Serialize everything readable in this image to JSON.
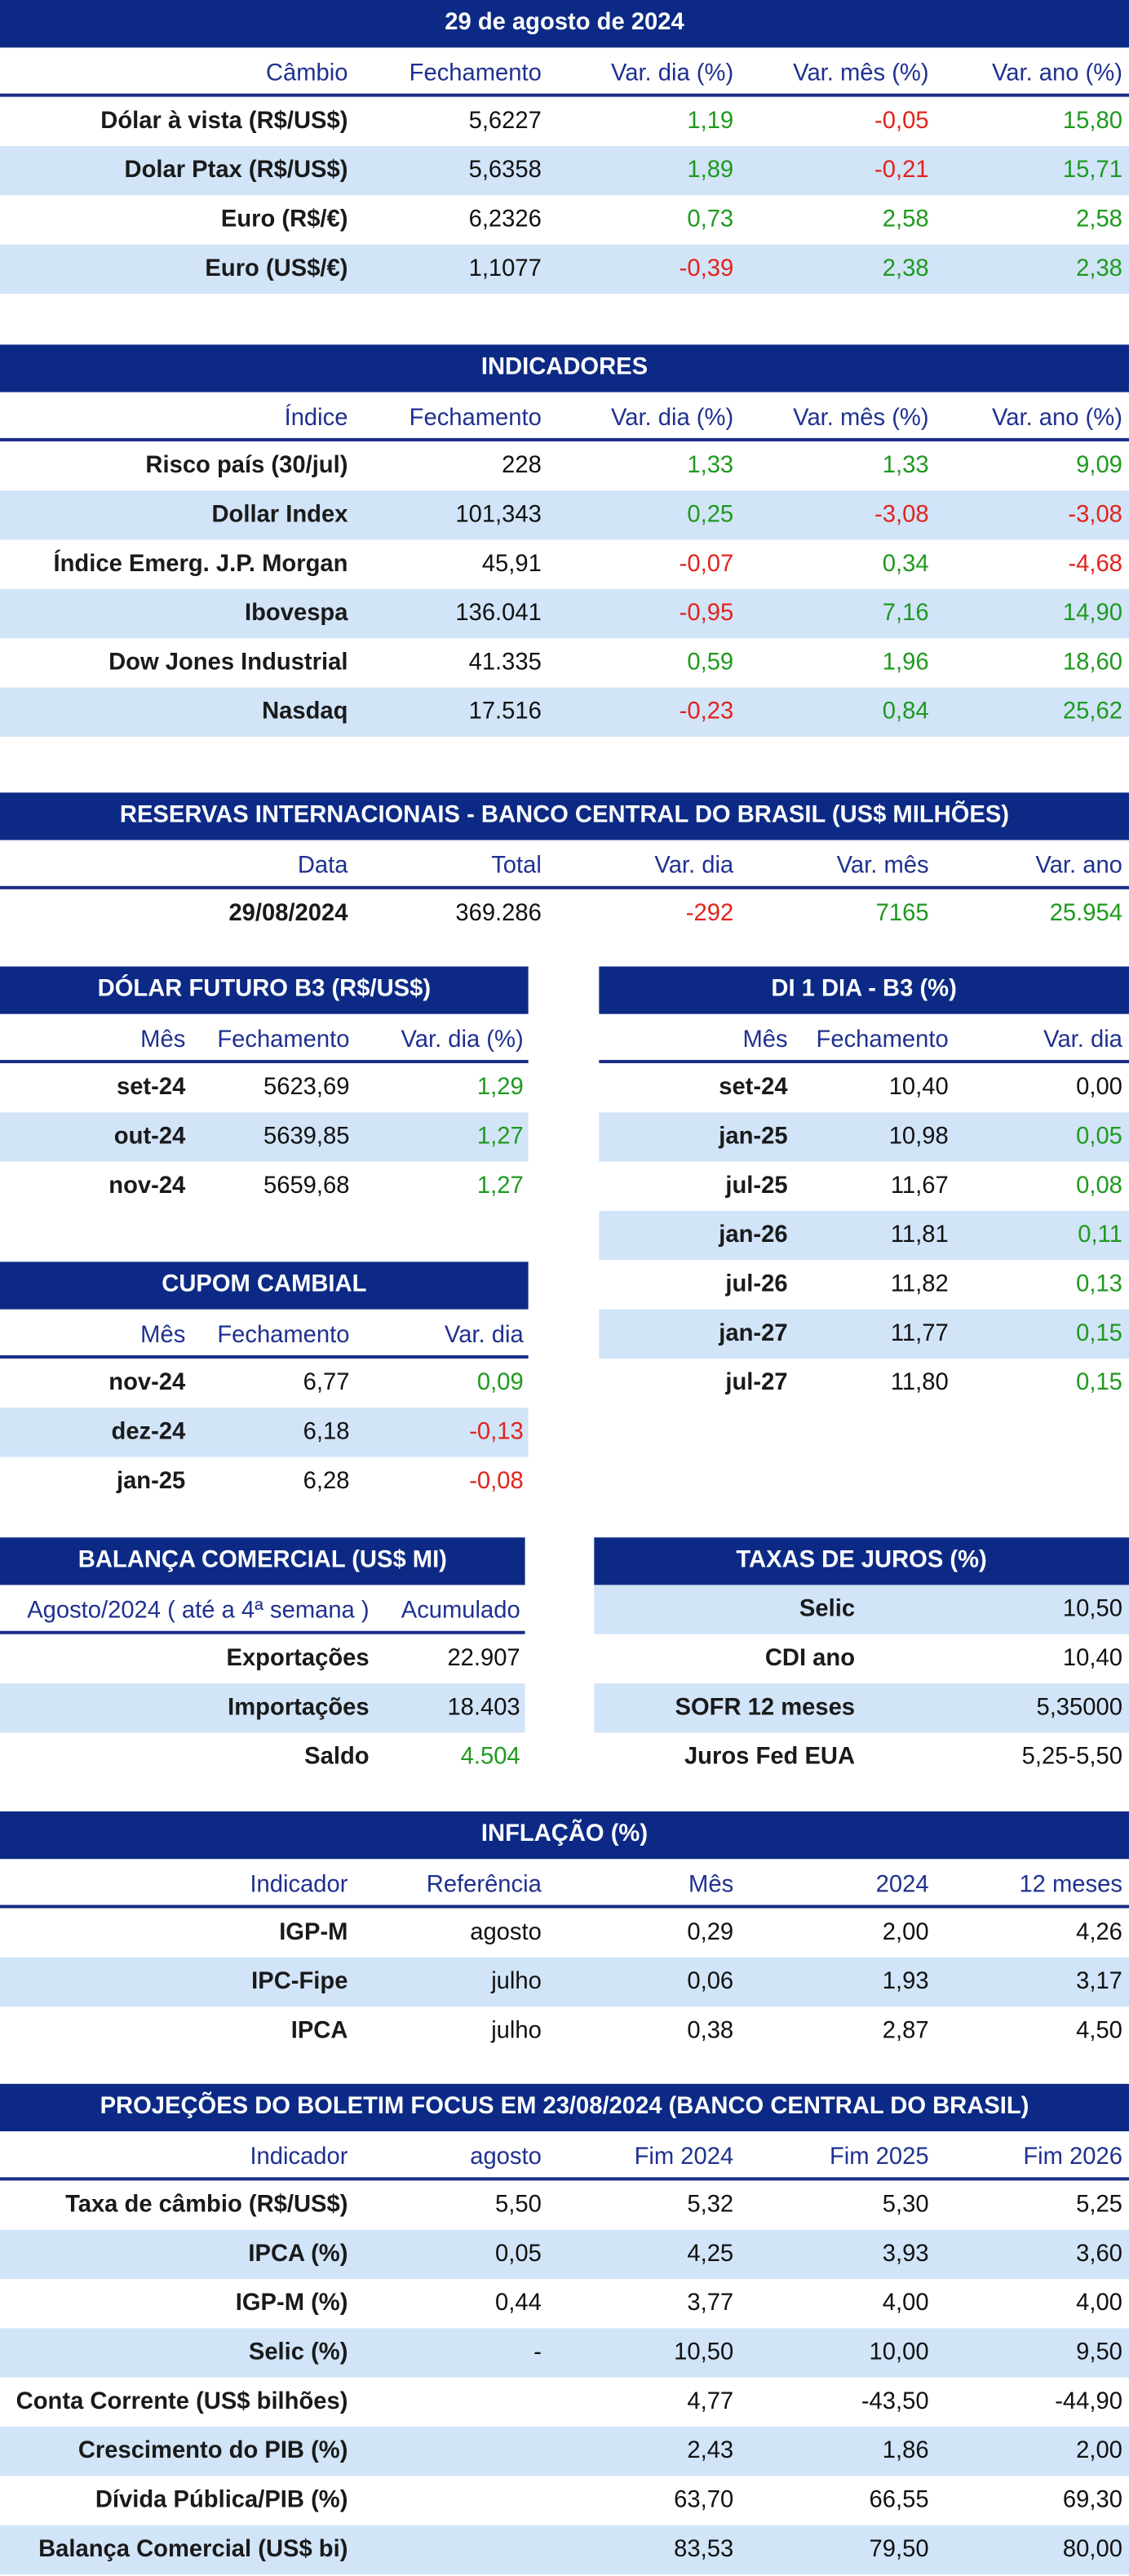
{
  "sections": [
    {
      "title": "29 de agosto de 2024",
      "header": [
        "Câmbio",
        "Fechamento",
        "Var. dia (%)",
        "Var. mês (%)",
        "Var. ano (%)"
      ],
      "rows": [
        [
          "Dólar à vista (R$/US$)",
          "5,6227",
          "1,19",
          "-0,05",
          "15,80"
        ],
        [
          "Dolar Ptax (R$/US$)",
          "5,6358",
          "1,89",
          "-0,21",
          "15,71"
        ],
        [
          "Euro (R$/€)",
          "6,2326",
          "0,73",
          "2,58",
          "2,58"
        ],
        [
          "Euro (US$/€)",
          "1,1077",
          "-0,39",
          "2,38",
          "2,38"
        ]
      ],
      "colors": [
        [
          null,
          null,
          "#1e9a1e",
          "#e3231b",
          "#1e9a1e"
        ],
        [
          null,
          null,
          "#1e9a1e",
          "#e3231b",
          "#1e9a1e"
        ],
        [
          null,
          null,
          "#1e9a1e",
          "#1e9a1e",
          "#1e9a1e"
        ],
        [
          null,
          null,
          "#e3231b",
          "#1e9a1e",
          "#1e9a1e"
        ]
      ]
    },
    {
      "title": "INDICADORES",
      "header": [
        "Índice",
        "Fechamento",
        "Var. dia (%)",
        "Var. mês (%)",
        "Var. ano (%)"
      ],
      "rows": [
        [
          "Risco país (30/jul)",
          "228",
          "1,33",
          "1,33",
          "9,09"
        ],
        [
          "Dollar Index",
          "101,343",
          "0,25",
          "-3,08",
          "-3,08"
        ],
        [
          "Índice Emerg. J.P. Morgan",
          "45,91",
          "-0,07",
          "0,34",
          "-4,68"
        ],
        [
          "Ibovespa",
          "136.041",
          "-0,95",
          "7,16",
          "14,90"
        ],
        [
          "Dow Jones Industrial",
          "41.335",
          "0,59",
          "1,96",
          "18,60"
        ],
        [
          "Nasdaq",
          "17.516",
          "-0,23",
          "0,84",
          "25,62"
        ]
      ],
      "colors": [
        [
          null,
          null,
          "#1e9a1e",
          "#1e9a1e",
          "#1e9a1e"
        ],
        [
          null,
          null,
          "#1e9a1e",
          "#e3231b",
          "#e3231b"
        ],
        [
          null,
          null,
          "#e3231b",
          "#1e9a1e",
          "#e3231b"
        ],
        [
          null,
          null,
          "#e3231b",
          "#1e9a1e",
          "#1e9a1e"
        ],
        [
          null,
          null,
          "#1e9a1e",
          "#1e9a1e",
          "#1e9a1e"
        ],
        [
          null,
          null,
          "#e3231b",
          "#1e9a1e",
          "#1e9a1e"
        ]
      ]
    },
    {
      "title": "RESERVAS INTERNACIONAIS - BANCO CENTRAL DO BRASIL (US$ MILHÕES)",
      "header": [
        "Data",
        "Total",
        "Var. dia",
        "Var. mês",
        "Var. ano"
      ],
      "rows": [
        [
          "29/08/2024",
          "369.286",
          "-292",
          "7165",
          "25.954"
        ]
      ],
      "colors": [
        [
          null,
          null,
          "#e3231b",
          "#1e9a1e",
          "#1e9a1e"
        ]
      ]
    },
    {
      "title": "DÓLAR FUTURO B3 (R$/US$)",
      "header": [
        "Mês",
        "Fechamento",
        "Var. dia (%)"
      ],
      "rows": [
        [
          "set-24",
          "5623,69",
          "1,29"
        ],
        [
          "out-24",
          "5639,85",
          "1,27"
        ],
        [
          "nov-24",
          "5659,68",
          "1,27"
        ]
      ],
      "colors": [
        [
          null,
          null,
          "#1e9a1e"
        ],
        [
          null,
          null,
          "#1e9a1e"
        ],
        [
          null,
          null,
          "#1e9a1e"
        ]
      ]
    },
    {
      "title": "DI 1 DIA - B3 (%)",
      "header": [
        "Mês",
        "Fechamento",
        "Var. dia"
      ],
      "rows": [
        [
          "set-24",
          "10,40",
          "0,00"
        ],
        [
          "jan-25",
          "10,98",
          "0,05"
        ],
        [
          "jul-25",
          "11,67",
          "0,08"
        ],
        [
          "jan-26",
          "11,81",
          "0,11"
        ],
        [
          "jul-26",
          "11,82",
          "0,13"
        ],
        [
          "jan-27",
          "11,77",
          "0,15"
        ],
        [
          "jul-27",
          "11,80",
          "0,15"
        ]
      ],
      "colors": [
        [
          null,
          null,
          null
        ],
        [
          null,
          null,
          "#1e9a1e"
        ],
        [
          null,
          null,
          "#1e9a1e"
        ],
        [
          null,
          null,
          "#1e9a1e"
        ],
        [
          null,
          null,
          "#1e9a1e"
        ],
        [
          null,
          null,
          "#1e9a1e"
        ],
        [
          null,
          null,
          "#1e9a1e"
        ]
      ]
    },
    {
      "title": "CUPOM CAMBIAL",
      "header": [
        "Mês",
        "Fechamento",
        "Var. dia"
      ],
      "rows": [
        [
          "nov-24",
          "6,77",
          "0,09"
        ],
        [
          "dez-24",
          "6,18",
          "-0,13"
        ],
        [
          "jan-25",
          "6,28",
          "-0,08"
        ]
      ],
      "colors": [
        [
          null,
          null,
          "#1e9a1e"
        ],
        [
          null,
          null,
          "#e3231b"
        ],
        [
          null,
          null,
          "#e3231b"
        ]
      ]
    },
    {
      "title": "BALANÇA COMERCIAL (US$ MI)",
      "header": [
        "Agosto/2024 ( até a 4ª semana )",
        "Acumulado"
      ],
      "rows": [
        [
          "Exportações",
          "22.907"
        ],
        [
          "Importações",
          "18.403"
        ],
        [
          "Saldo",
          "4.504"
        ]
      ],
      "colors": [
        [
          null,
          null
        ],
        [
          null,
          null
        ],
        [
          null,
          "#1e9a1e"
        ]
      ]
    },
    {
      "title": "TAXAS DE JUROS (%)",
      "rows": [
        [
          "Selic",
          "10,50"
        ],
        [
          "CDI ano",
          "10,40"
        ],
        [
          "SOFR 12 meses",
          "5,35000"
        ],
        [
          "Juros Fed EUA",
          "5,25-5,50"
        ]
      ]
    },
    {
      "title": "INFLAÇÃO (%)",
      "header": [
        "Indicador",
        "Referência",
        "Mês",
        "2024",
        "12 meses"
      ],
      "rows": [
        [
          "IGP-M",
          "agosto",
          "0,29",
          "2,00",
          "4,26"
        ],
        [
          "IPC-Fipe",
          "julho",
          "0,06",
          "1,93",
          "3,17"
        ],
        [
          "IPCA",
          "julho",
          "0,38",
          "2,87",
          "4,50"
        ]
      ]
    },
    {
      "title": "PROJEÇÕES DO BOLETIM FOCUS EM 23/08/2024 (BANCO CENTRAL DO BRASIL)",
      "header": [
        "Indicador",
        "agosto",
        "Fim 2024",
        "Fim 2025",
        "Fim 2026"
      ],
      "rows": [
        [
          "Taxa de câmbio (R$/US$)",
          "5,50",
          "5,32",
          "5,30",
          "5,25"
        ],
        [
          "IPCA (%)",
          "0,05",
          "4,25",
          "3,93",
          "3,60"
        ],
        [
          "IGP-M (%)",
          "0,44",
          "3,77",
          "4,00",
          "4,00"
        ],
        [
          "Selic (%)",
          "-",
          "10,50",
          "10,00",
          "9,50"
        ],
        [
          "Conta Corrente (US$ bilhões)",
          null,
          "4,77",
          "-43,50",
          "-44,90"
        ],
        [
          "Crescimento do PIB (%)",
          null,
          "2,43",
          "1,86",
          "2,00"
        ],
        [
          "Dívida Pública/PIB (%)",
          null,
          "63,70",
          "66,55",
          "69,30"
        ],
        [
          "Balança Comercial (US$ bi)",
          null,
          "83,53",
          "79,50",
          "80,00"
        ]
      ]
    }
  ]
}
